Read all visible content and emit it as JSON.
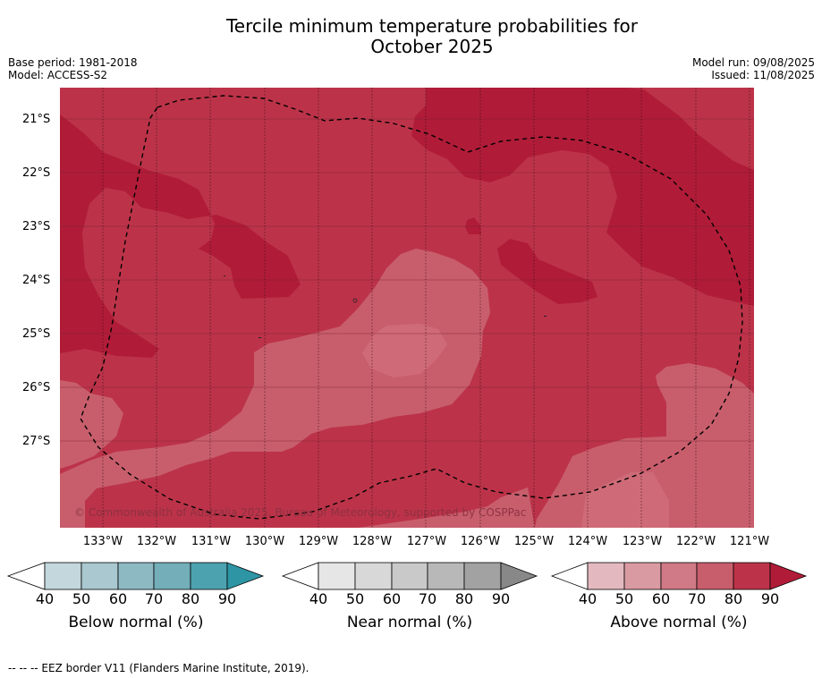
{
  "title_line1": "Tercile minimum temperature probabilities for",
  "title_line2": "October 2025",
  "meta_left": [
    "Base period: 1981-2018",
    "Model: ACCESS-S2"
  ],
  "meta_right": [
    "Model run: 09/08/2025",
    "Issued: 11/08/2025"
  ],
  "copyright": "© Commonwealth of Australia 2025, Bureau of Meteorology, supported by COSPPac",
  "footer": "--  --  -- EEZ border V11 (Flanders Marine Institute, 2019).",
  "map": {
    "lat_labels": [
      "21°S",
      "22°S",
      "23°S",
      "24°S",
      "25°S",
      "26°S",
      "27°S"
    ],
    "lon_labels": [
      "133°W",
      "132°W",
      "131°W",
      "130°W",
      "129°W",
      "128°W",
      "127°W",
      "126°W",
      "125°W",
      "124°W",
      "123°W",
      "122°W",
      "121°W"
    ]
  },
  "colorbars": [
    {
      "name": "below",
      "label": "Below normal (%)",
      "ticks": [
        "40",
        "50",
        "60",
        "70",
        "80",
        "90"
      ],
      "colors": [
        "#ffffff",
        "#c3d7dd",
        "#a9c8cf",
        "#8db9c3",
        "#73aeb9",
        "#4da2b0",
        "#2e95a5"
      ]
    },
    {
      "name": "near",
      "label": "Near normal (%)",
      "ticks": [
        "40",
        "50",
        "60",
        "70",
        "80",
        "90"
      ],
      "colors": [
        "#ffffff",
        "#e6e6e6",
        "#d8d8d8",
        "#c9c9c9",
        "#b8b8b8",
        "#a2a2a2",
        "#888888"
      ]
    },
    {
      "name": "above",
      "label": "Above normal (%)",
      "ticks": [
        "40",
        "50",
        "60",
        "70",
        "80",
        "90"
      ],
      "colors": [
        "#ffffff",
        "#e3b9bf",
        "#d99aa2",
        "#cf7a86",
        "#c85e6c",
        "#bc3349",
        "#b01c38"
      ]
    }
  ]
}
